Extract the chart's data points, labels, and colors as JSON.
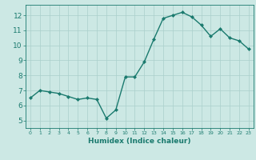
{
  "x": [
    0,
    1,
    2,
    3,
    4,
    5,
    6,
    7,
    8,
    9,
    10,
    11,
    12,
    13,
    14,
    15,
    16,
    17,
    18,
    19,
    20,
    21,
    22,
    23
  ],
  "y": [
    6.5,
    7.0,
    6.9,
    6.8,
    6.6,
    6.4,
    6.5,
    6.4,
    5.15,
    5.7,
    7.9,
    7.9,
    8.9,
    10.4,
    11.8,
    12.0,
    12.2,
    11.9,
    11.35,
    10.6,
    11.1,
    10.5,
    10.3,
    9.75
  ],
  "xlabel": "Humidex (Indice chaleur)",
  "xlim": [
    -0.5,
    23.5
  ],
  "ylim": [
    4.5,
    12.7
  ],
  "yticks": [
    5,
    6,
    7,
    8,
    9,
    10,
    11,
    12
  ],
  "xticks": [
    0,
    1,
    2,
    3,
    4,
    5,
    6,
    7,
    8,
    9,
    10,
    11,
    12,
    13,
    14,
    15,
    16,
    17,
    18,
    19,
    20,
    21,
    22,
    23
  ],
  "line_color": "#1a7a6e",
  "marker": "D",
  "marker_size": 2.0,
  "bg_color": "#cce8e4",
  "grid_color": "#aacfcb",
  "axis_color": "#1a7a6e",
  "tick_label_color": "#1a7a6e",
  "xlabel_color": "#1a7a6e",
  "line_width": 1.0
}
